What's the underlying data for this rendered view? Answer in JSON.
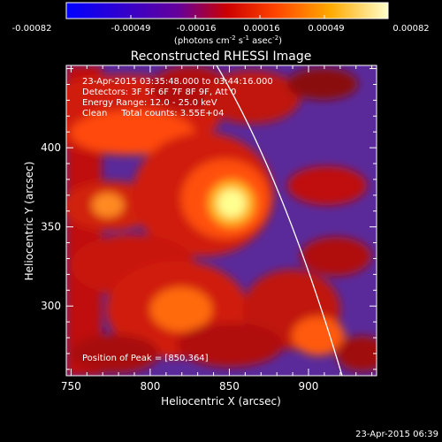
{
  "colorbar": {
    "ticks": [
      "-0.00082",
      "-0.00049",
      "-0.00016",
      "0.00016",
      "0.00049",
      "0.00082"
    ],
    "units_prefix": "(photons cm",
    "units_exp1": "-2",
    "units_mid": " s",
    "units_exp2": "-1",
    "units_mid2": " asec",
    "units_exp3": "-2",
    "units_suffix": ")"
  },
  "chart_data": {
    "type": "heatmap",
    "title": "Reconstructed RHESSI Image",
    "xlabel": "Heliocentric X (arcsec)",
    "ylabel": "Heliocentric Y (arcsec)",
    "xlim": [
      747,
      943
    ],
    "ylim": [
      256,
      452
    ],
    "x_ticks": [
      750,
      800,
      850,
      900
    ],
    "y_ticks": [
      300,
      350,
      400
    ],
    "colorscale_range": [
      -0.00082,
      0.00082
    ],
    "peak": {
      "x": 850,
      "y": 364
    },
    "annotations": [
      "23-Apr-2015 03:35:48.000 to 03:44:16.000",
      "Detectors: 3F 5F 6F 7F 8F 9F, Att 0",
      "Energy Range: 12.0 - 25.0 keV",
      "Clean     Total counts: 3.55E+04"
    ],
    "peak_label": "Position of Peak = [850,364]",
    "footer": "23-Apr-2015 06:39"
  }
}
